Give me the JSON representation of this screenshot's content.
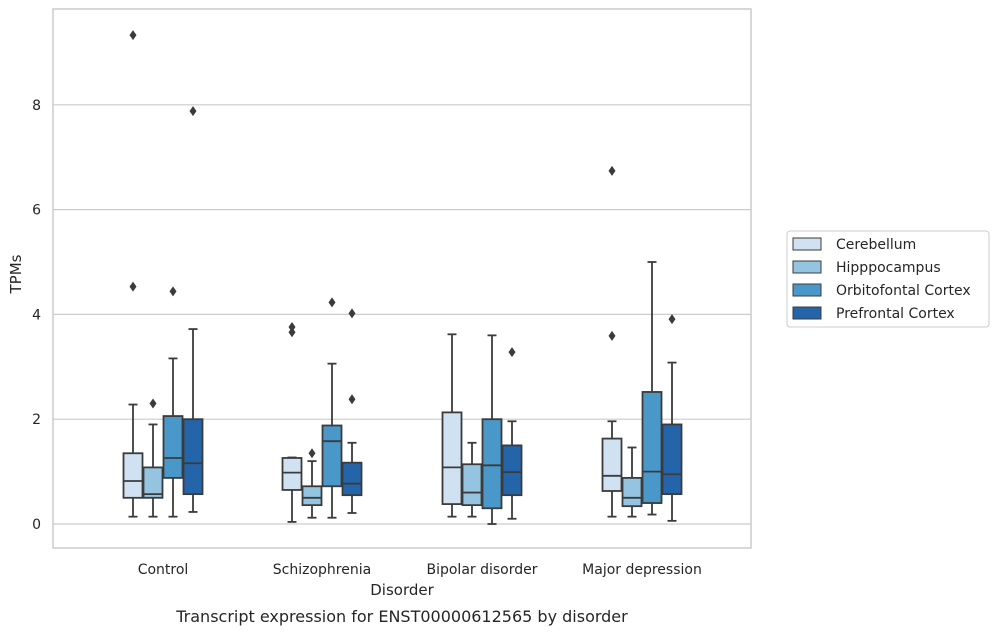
{
  "chart_data": {
    "type": "box",
    "xlabel": "Disorder",
    "ylabel": "TPMs",
    "caption": "Transcript expression for ENST00000612565 by disorder",
    "ylim": [
      -0.45,
      9.8
    ],
    "yticks": [
      0,
      2,
      4,
      6,
      8
    ],
    "grid": "horizontal",
    "legend_position": "right",
    "categories": [
      "Control",
      "Schizophrenia",
      "Bipolar disorder",
      "Major depression"
    ],
    "series": [
      {
        "name": "Cerebellum",
        "color": "#d0e1f2",
        "boxes": [
          {
            "whisker_low": 0.14,
            "q1": 0.5,
            "median": 0.82,
            "q3": 1.35,
            "whisker_high": 2.28,
            "outliers": [
              4.53,
              9.33
            ]
          },
          {
            "whisker_low": 0.04,
            "q1": 0.65,
            "median": 0.98,
            "q3": 1.26,
            "whisker_high": 1.27,
            "outliers": [
              3.66,
              3.76
            ]
          },
          {
            "whisker_low": 0.14,
            "q1": 0.38,
            "median": 1.08,
            "q3": 2.13,
            "whisker_high": 3.62,
            "outliers": []
          },
          {
            "whisker_low": 0.14,
            "q1": 0.63,
            "median": 0.92,
            "q3": 1.63,
            "whisker_high": 1.96,
            "outliers": [
              3.59,
              6.74
            ]
          }
        ]
      },
      {
        "name": "Hipppocampus",
        "color": "#94c4df",
        "boxes": [
          {
            "whisker_low": 0.14,
            "q1": 0.5,
            "median": 0.57,
            "q3": 1.08,
            "whisker_high": 1.9,
            "outliers": [
              2.3
            ]
          },
          {
            "whisker_low": 0.12,
            "q1": 0.36,
            "median": 0.5,
            "q3": 0.72,
            "whisker_high": 1.2,
            "outliers": [
              1.35
            ]
          },
          {
            "whisker_low": 0.14,
            "q1": 0.36,
            "median": 0.6,
            "q3": 1.14,
            "whisker_high": 1.55,
            "outliers": []
          },
          {
            "whisker_low": 0.14,
            "q1": 0.34,
            "median": 0.5,
            "q3": 0.88,
            "whisker_high": 1.46,
            "outliers": []
          }
        ]
      },
      {
        "name": "Orbitofontal Cortex",
        "color": "#4a98c9",
        "boxes": [
          {
            "whisker_low": 0.14,
            "q1": 0.88,
            "median": 1.26,
            "q3": 2.06,
            "whisker_high": 3.16,
            "outliers": [
              4.44
            ]
          },
          {
            "whisker_low": 0.12,
            "q1": 0.72,
            "median": 1.58,
            "q3": 1.88,
            "whisker_high": 3.06,
            "outliers": [
              4.23
            ]
          },
          {
            "whisker_low": 0.0,
            "q1": 0.3,
            "median": 1.12,
            "q3": 2.0,
            "whisker_high": 3.6,
            "outliers": []
          },
          {
            "whisker_low": 0.18,
            "q1": 0.4,
            "median": 1.0,
            "q3": 2.52,
            "whisker_high": 5.0,
            "outliers": []
          }
        ]
      },
      {
        "name": "Prefrontal Cortex",
        "color": "#2464a9",
        "boxes": [
          {
            "whisker_low": 0.23,
            "q1": 0.57,
            "median": 1.16,
            "q3": 2.0,
            "whisker_high": 3.72,
            "outliers": [
              7.88
            ]
          },
          {
            "whisker_low": 0.21,
            "q1": 0.55,
            "median": 0.77,
            "q3": 1.17,
            "whisker_high": 1.55,
            "outliers": [
              2.38,
              4.02
            ]
          },
          {
            "whisker_low": 0.1,
            "q1": 0.55,
            "median": 0.99,
            "q3": 1.5,
            "whisker_high": 1.96,
            "outliers": [
              3.28
            ]
          },
          {
            "whisker_low": 0.06,
            "q1": 0.57,
            "median": 0.95,
            "q3": 1.9,
            "whisker_high": 3.08,
            "outliers": [
              3.91
            ]
          }
        ]
      }
    ]
  }
}
